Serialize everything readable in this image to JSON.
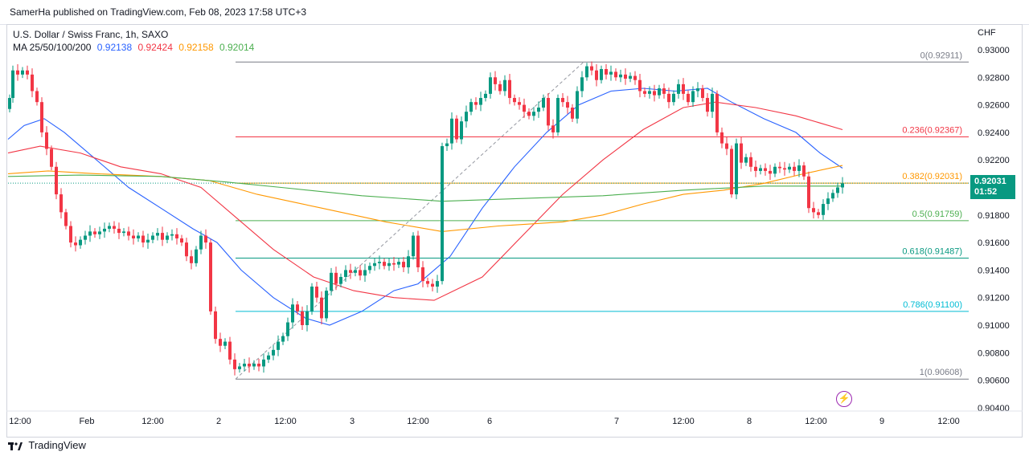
{
  "header": {
    "publisher_text": "SamerHa published on TradingView.com, Feb 08, 2023 17:58 UTC+3"
  },
  "legend": {
    "symbol_title": "U.S. Dollar / Swiss Franc, 1h, SAXO",
    "ma_label": "MA 25/50/100/200",
    "ma_values": [
      "0.92138",
      "0.92424",
      "0.92158",
      "0.92014"
    ],
    "ma_colors": [
      "#2962ff",
      "#f23645",
      "#ff9800",
      "#4caf50"
    ]
  },
  "axis": {
    "currency": "CHF",
    "y_ticks": [
      "0.93000",
      "0.92800",
      "0.92600",
      "0.92400",
      "0.92200",
      "0.92000",
      "0.91800",
      "0.91600",
      "0.91400",
      "0.91200",
      "0.91000",
      "0.90800",
      "0.90600",
      "0.90400"
    ],
    "x_ticks": [
      "12:00",
      "Feb",
      "12:00",
      "2",
      "12:00",
      "3",
      "12:00",
      "6",
      "7",
      "12:00",
      "8",
      "12:00",
      "9",
      "12:00"
    ]
  },
  "price_tag": {
    "price": "0.92031",
    "countdown": "01:52",
    "color": "#089981"
  },
  "footer": {
    "brand": "TradingView"
  },
  "chart_data": {
    "type": "candlestick",
    "title": "U.S. Dollar / Swiss Franc, 1h, SAXO",
    "ylim": [
      0.9035,
      0.9305
    ],
    "up_color": "#089981",
    "down_color": "#f23645",
    "last_price": 0.92031,
    "fibonacci": [
      {
        "label": "0(0.92911)",
        "level": 0.92911,
        "color": "#787b86"
      },
      {
        "label": "0.236(0.92367)",
        "level": 0.92367,
        "color": "#f23645"
      },
      {
        "label": "0.382(0.92031)",
        "level": 0.92031,
        "color": "#ff9800"
      },
      {
        "label": "0.5(0.91759)",
        "level": 0.91759,
        "color": "#4caf50"
      },
      {
        "label": "0.618(0.91487)",
        "level": 0.91487,
        "color": "#089981"
      },
      {
        "label": "0.786(0.91100)",
        "level": 0.911,
        "color": "#00bcd4"
      },
      {
        "label": "1(0.90608)",
        "level": 0.90608,
        "color": "#787b86"
      }
    ],
    "ma_series_names": [
      "MA 25",
      "MA 50",
      "MA 100",
      "MA 200"
    ]
  }
}
